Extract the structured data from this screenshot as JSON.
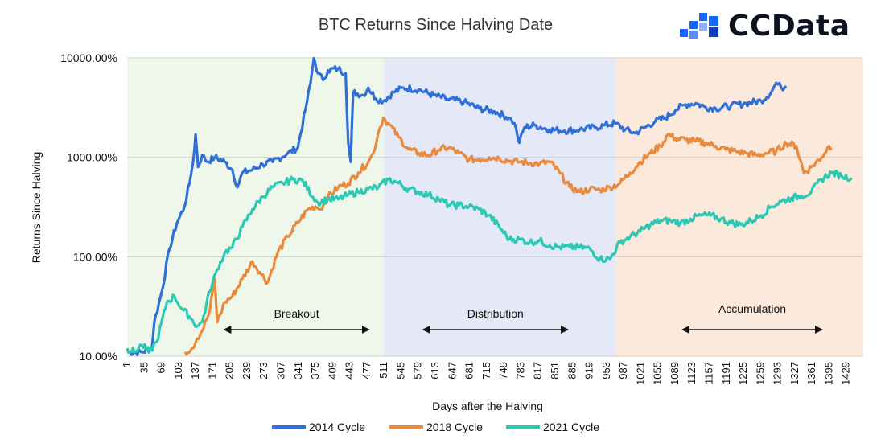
{
  "brand": {
    "name": "CCData",
    "color": "#1565ff"
  },
  "chart_data": {
    "type": "line",
    "title": "BTC Returns Since Halving Date",
    "xlabel": "Days after the Halving",
    "ylabel": "Returns Since Halving",
    "y_scale": "log",
    "ylim": [
      10,
      10000
    ],
    "xlim": [
      1,
      1463
    ],
    "yticks": [
      {
        "value": 10,
        "label": "10.00%"
      },
      {
        "value": 100,
        "label": "100.00%"
      },
      {
        "value": 1000,
        "label": "1000.00%"
      },
      {
        "value": 10000,
        "label": "10000.00%"
      }
    ],
    "xticks": [
      "1",
      "35",
      "69",
      "103",
      "137",
      "171",
      "205",
      "239",
      "273",
      "307",
      "341",
      "375",
      "409",
      "443",
      "477",
      "511",
      "545",
      "579",
      "613",
      "647",
      "681",
      "715",
      "749",
      "783",
      "817",
      "851",
      "885",
      "919",
      "953",
      "987",
      "1021",
      "1055",
      "1089",
      "1123",
      "1157",
      "1191",
      "1225",
      "1259",
      "1293",
      "1327",
      "1361",
      "1395",
      "1429"
    ],
    "grid": "horizontal",
    "legend_position": "bottom",
    "phases": [
      {
        "label": "Breakout",
        "x_start": 1,
        "x_end": 511,
        "color": "#eef7ea",
        "arrow": [
          195,
          480
        ]
      },
      {
        "label": "Distribution",
        "x_start": 511,
        "x_end": 972,
        "color": "#e5e9f7",
        "arrow": [
          590,
          875
        ]
      },
      {
        "label": "Accumulation",
        "x_start": 972,
        "x_end": 1463,
        "color": "#fbe9dc",
        "arrow": [
          1105,
          1380
        ]
      }
    ],
    "series": [
      {
        "name": "2014 Cycle",
        "color": "#2e6fd8",
        "points": [
          [
            1,
            11
          ],
          [
            30,
            11
          ],
          [
            50,
            12
          ],
          [
            55,
            22
          ],
          [
            70,
            45
          ],
          [
            85,
            120
          ],
          [
            100,
            220
          ],
          [
            115,
            320
          ],
          [
            125,
            550
          ],
          [
            132,
            900
          ],
          [
            137,
            1700
          ],
          [
            142,
            800
          ],
          [
            150,
            1050
          ],
          [
            160,
            900
          ],
          [
            175,
            1000
          ],
          [
            195,
            900
          ],
          [
            210,
            750
          ],
          [
            220,
            500
          ],
          [
            230,
            700
          ],
          [
            250,
            750
          ],
          [
            270,
            850
          ],
          [
            290,
            900
          ],
          [
            320,
            1100
          ],
          [
            340,
            1250
          ],
          [
            355,
            3000
          ],
          [
            365,
            5500
          ],
          [
            372,
            9900
          ],
          [
            380,
            7000
          ],
          [
            390,
            6000
          ],
          [
            400,
            7500
          ],
          [
            420,
            7800
          ],
          [
            435,
            7000
          ],
          [
            440,
            1400
          ],
          [
            445,
            900
          ],
          [
            450,
            4500
          ],
          [
            470,
            4200
          ],
          [
            480,
            5000
          ],
          [
            495,
            3900
          ],
          [
            510,
            3700
          ],
          [
            530,
            4500
          ],
          [
            550,
            5000
          ],
          [
            580,
            4800
          ],
          [
            610,
            4200
          ],
          [
            640,
            3800
          ],
          [
            670,
            3600
          ],
          [
            700,
            3100
          ],
          [
            730,
            2900
          ],
          [
            760,
            2500
          ],
          [
            770,
            2200
          ],
          [
            780,
            1400
          ],
          [
            790,
            2000
          ],
          [
            810,
            2100
          ],
          [
            840,
            1900
          ],
          [
            870,
            1850
          ],
          [
            900,
            1900
          ],
          [
            930,
            2000
          ],
          [
            950,
            2100
          ],
          [
            970,
            2200
          ],
          [
            990,
            1900
          ],
          [
            1010,
            1750
          ],
          [
            1030,
            2000
          ],
          [
            1050,
            2300
          ],
          [
            1070,
            2500
          ],
          [
            1090,
            3000
          ],
          [
            1110,
            3400
          ],
          [
            1130,
            3500
          ],
          [
            1150,
            3200
          ],
          [
            1170,
            3100
          ],
          [
            1200,
            3300
          ],
          [
            1230,
            3500
          ],
          [
            1260,
            3700
          ],
          [
            1280,
            4500
          ],
          [
            1290,
            5600
          ],
          [
            1300,
            5000
          ],
          [
            1310,
            5200
          ]
        ]
      },
      {
        "name": "2018 Cycle",
        "color": "#e98a3c",
        "points": [
          [
            116,
            11
          ],
          [
            130,
            12
          ],
          [
            140,
            15
          ],
          [
            150,
            18
          ],
          [
            165,
            28
          ],
          [
            175,
            60
          ],
          [
            180,
            22
          ],
          [
            195,
            35
          ],
          [
            210,
            40
          ],
          [
            230,
            60
          ],
          [
            250,
            90
          ],
          [
            265,
            70
          ],
          [
            280,
            55
          ],
          [
            300,
            110
          ],
          [
            320,
            160
          ],
          [
            340,
            220
          ],
          [
            360,
            300
          ],
          [
            375,
            320
          ],
          [
            385,
            300
          ],
          [
            400,
            400
          ],
          [
            420,
            500
          ],
          [
            440,
            550
          ],
          [
            460,
            700
          ],
          [
            480,
            900
          ],
          [
            490,
            1100
          ],
          [
            500,
            1800
          ],
          [
            510,
            2500
          ],
          [
            520,
            2200
          ],
          [
            540,
            1600
          ],
          [
            560,
            1200
          ],
          [
            580,
            1100
          ],
          [
            600,
            1050
          ],
          [
            620,
            1200
          ],
          [
            640,
            1250
          ],
          [
            660,
            1100
          ],
          [
            680,
            950
          ],
          [
            700,
            950
          ],
          [
            720,
            1000
          ],
          [
            740,
            980
          ],
          [
            760,
            920
          ],
          [
            780,
            900
          ],
          [
            800,
            880
          ],
          [
            820,
            860
          ],
          [
            840,
            900
          ],
          [
            860,
            700
          ],
          [
            880,
            500
          ],
          [
            900,
            450
          ],
          [
            920,
            480
          ],
          [
            940,
            470
          ],
          [
            960,
            500
          ],
          [
            980,
            550
          ],
          [
            1000,
            700
          ],
          [
            1020,
            900
          ],
          [
            1040,
            1100
          ],
          [
            1060,
            1300
          ],
          [
            1075,
            1700
          ],
          [
            1090,
            1550
          ],
          [
            1110,
            1500
          ],
          [
            1130,
            1450
          ],
          [
            1150,
            1400
          ],
          [
            1170,
            1300
          ],
          [
            1190,
            1200
          ],
          [
            1210,
            1150
          ],
          [
            1230,
            1100
          ],
          [
            1250,
            1050
          ],
          [
            1270,
            1100
          ],
          [
            1290,
            1150
          ],
          [
            1310,
            1400
          ],
          [
            1330,
            1300
          ],
          [
            1345,
            700
          ],
          [
            1360,
            800
          ],
          [
            1380,
            1000
          ],
          [
            1395,
            1300
          ],
          [
            1400,
            1250
          ]
        ]
      },
      {
        "name": "2021 Cycle",
        "color": "#2bc9b4",
        "points": [
          [
            1,
            12
          ],
          [
            15,
            11
          ],
          [
            30,
            13
          ],
          [
            45,
            11
          ],
          [
            60,
            14
          ],
          [
            80,
            35
          ],
          [
            95,
            40
          ],
          [
            110,
            30
          ],
          [
            125,
            25
          ],
          [
            140,
            20
          ],
          [
            150,
            22
          ],
          [
            165,
            45
          ],
          [
            180,
            75
          ],
          [
            195,
            110
          ],
          [
            210,
            125
          ],
          [
            230,
            200
          ],
          [
            250,
            300
          ],
          [
            270,
            400
          ],
          [
            290,
            500
          ],
          [
            310,
            550
          ],
          [
            330,
            600
          ],
          [
            350,
            580
          ],
          [
            370,
            400
          ],
          [
            380,
            350
          ],
          [
            400,
            380
          ],
          [
            420,
            380
          ],
          [
            440,
            420
          ],
          [
            460,
            450
          ],
          [
            480,
            480
          ],
          [
            500,
            500
          ],
          [
            520,
            600
          ],
          [
            540,
            550
          ],
          [
            560,
            480
          ],
          [
            580,
            450
          ],
          [
            600,
            420
          ],
          [
            620,
            380
          ],
          [
            640,
            330
          ],
          [
            660,
            330
          ],
          [
            680,
            320
          ],
          [
            700,
            300
          ],
          [
            720,
            260
          ],
          [
            740,
            200
          ],
          [
            760,
            150
          ],
          [
            780,
            150
          ],
          [
            800,
            140
          ],
          [
            820,
            145
          ],
          [
            840,
            130
          ],
          [
            860,
            125
          ],
          [
            880,
            125
          ],
          [
            900,
            125
          ],
          [
            920,
            120
          ],
          [
            940,
            95
          ],
          [
            960,
            95
          ],
          [
            980,
            140
          ],
          [
            1000,
            160
          ],
          [
            1020,
            180
          ],
          [
            1040,
            210
          ],
          [
            1060,
            230
          ],
          [
            1080,
            230
          ],
          [
            1100,
            220
          ],
          [
            1120,
            240
          ],
          [
            1140,
            260
          ],
          [
            1160,
            260
          ],
          [
            1180,
            240
          ],
          [
            1200,
            220
          ],
          [
            1220,
            210
          ],
          [
            1240,
            230
          ],
          [
            1260,
            260
          ],
          [
            1280,
            320
          ],
          [
            1300,
            360
          ],
          [
            1320,
            390
          ],
          [
            1340,
            410
          ],
          [
            1360,
            450
          ],
          [
            1380,
            600
          ],
          [
            1400,
            700
          ],
          [
            1420,
            650
          ],
          [
            1440,
            620
          ]
        ]
      }
    ]
  }
}
